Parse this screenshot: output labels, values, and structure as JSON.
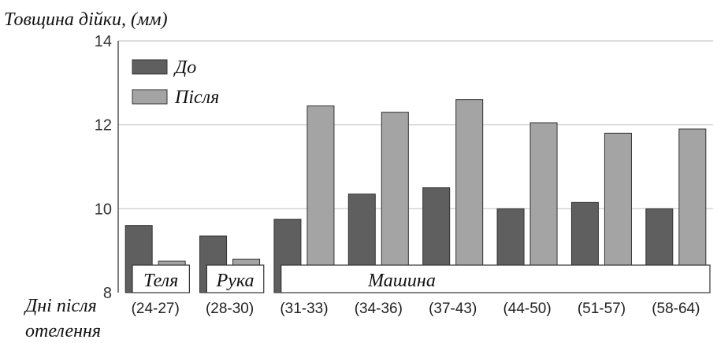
{
  "chart_data": {
    "type": "bar",
    "title": "Товщина дійки, (мм)",
    "xlabel": "Дні після отелення",
    "ylabel": "Товщина дійки, (мм)",
    "ylim": [
      8,
      14
    ],
    "yticks": [
      "8",
      "10",
      "12",
      "14"
    ],
    "grid": true,
    "legend_position": "top-left",
    "categories": [
      "(24-27)",
      "(28-30)",
      "(31-33)",
      "(34-36)",
      "(37-43)",
      "(44-50)",
      "(51-57)",
      "(58-64)"
    ],
    "series": [
      {
        "name": "До",
        "color": "#5f5f5f",
        "values": [
          9.6,
          9.35,
          9.75,
          10.35,
          10.5,
          10.0,
          10.15,
          10.0
        ]
      },
      {
        "name": "Після",
        "color": "#a4a4a4",
        "values": [
          8.75,
          8.8,
          12.45,
          12.3,
          12.6,
          12.05,
          11.8,
          11.9
        ]
      }
    ],
    "groups": [
      {
        "label": "Теля",
        "from": 0,
        "to": 0
      },
      {
        "label": "Рука",
        "from": 1,
        "to": 1
      },
      {
        "label": "Машина",
        "from": 2,
        "to": 7
      }
    ]
  }
}
